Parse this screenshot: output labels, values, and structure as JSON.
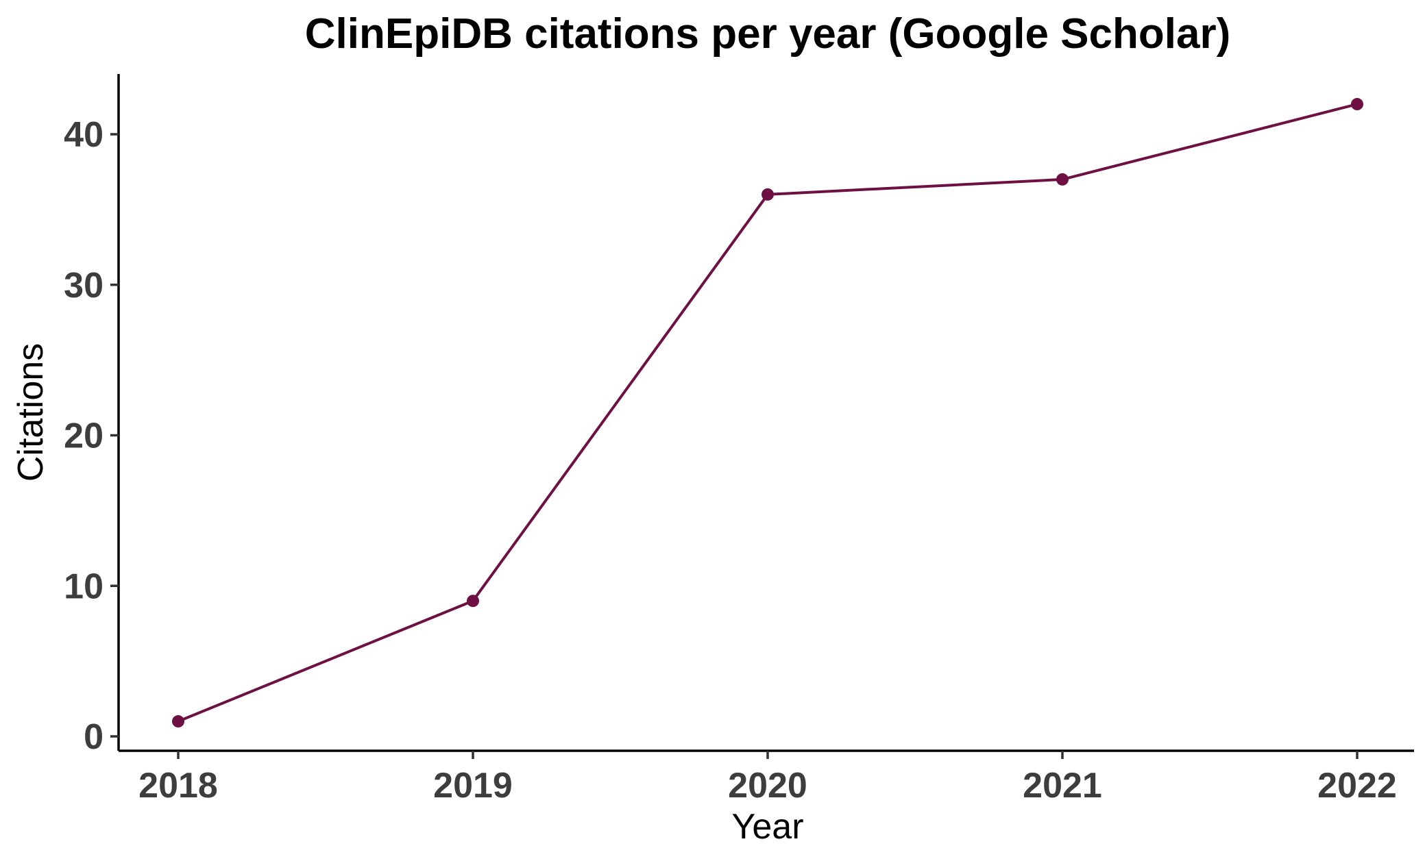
{
  "chart_data": {
    "type": "line",
    "title": "ClinEpiDB citations per year (Google Scholar)",
    "xlabel": "Year",
    "ylabel": "Citations",
    "categories": [
      "2018",
      "2019",
      "2020",
      "2021",
      "2022"
    ],
    "series": [
      {
        "values": [
          1,
          9,
          36,
          37,
          42
        ],
        "color": "#6e1043"
      }
    ],
    "y_ticks": [
      0,
      10,
      20,
      30,
      40
    ],
    "ylim": [
      -1,
      44
    ],
    "grid": false,
    "legend": "none"
  }
}
